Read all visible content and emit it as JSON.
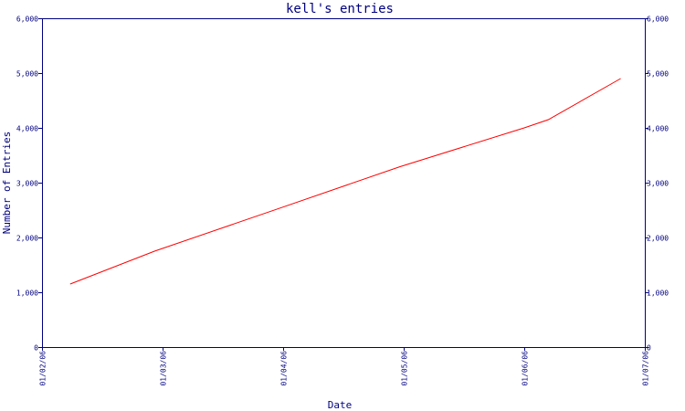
{
  "chart_data": {
    "type": "line",
    "title": "kell's entries",
    "xlabel": "Date",
    "ylabel": "Number of Entries",
    "x_ticks": [
      "01/02/06",
      "01/03/06",
      "01/04/06",
      "01/05/06",
      "01/06/06",
      "01/07/06"
    ],
    "y_ticks": [
      "0",
      "1,000",
      "2,000",
      "3,000",
      "4,000",
      "5,000",
      "6,000"
    ],
    "ylim": [
      0,
      6000
    ],
    "xlim": [
      "2006-02-01",
      "2006-07-01"
    ],
    "right_axis_mirror": true,
    "grid": false,
    "series": [
      {
        "color": "#ff0000",
        "points": [
          {
            "x": "2006-02-08",
            "y": 1150
          },
          {
            "x": "2006-03-01",
            "y": 1750
          },
          {
            "x": "2006-04-01",
            "y": 2530
          },
          {
            "x": "2006-05-01",
            "y": 3290
          },
          {
            "x": "2006-06-01",
            "y": 4000
          },
          {
            "x": "2006-06-07",
            "y": 4150
          },
          {
            "x": "2006-06-25",
            "y": 4900
          }
        ]
      }
    ]
  },
  "colors": {
    "axis": "#000080",
    "line": "#ff0000",
    "background": "#ffffff"
  }
}
